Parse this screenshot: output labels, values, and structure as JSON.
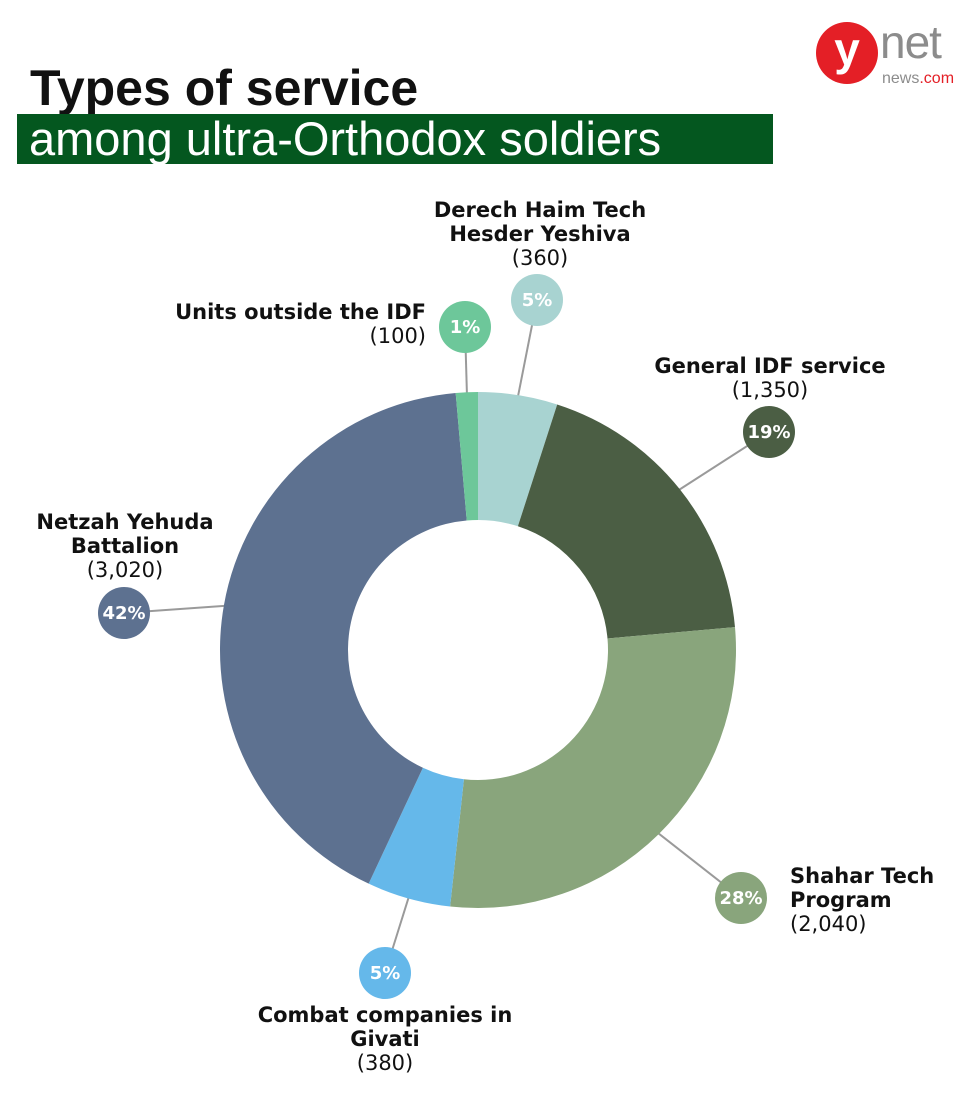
{
  "header": {
    "title": "Types of service",
    "subtitle": "among ultra-Orthodox soldiers"
  },
  "logo": {
    "mark": "y",
    "wordmark": "net",
    "site": "news",
    "domain": ".com"
  },
  "chart_data": {
    "type": "pie",
    "donut": true,
    "title": "Types of service",
    "subtitle": "among ultra-Orthodox soldiers",
    "legend": "none",
    "slices": [
      {
        "name": "Derech Haim Tech Hesder Yeshiva",
        "count_label": "(360)",
        "value": 360,
        "percent_label": "5%",
        "color": "#a8d3d1"
      },
      {
        "name": "General IDF service",
        "count_label": "(1,350)",
        "value": 1350,
        "percent_label": "19%",
        "color": "#4b5e44"
      },
      {
        "name": "Shahar Tech Program",
        "count_label": "(2,040)",
        "value": 2040,
        "percent_label": "28%",
        "color": "#89a57c"
      },
      {
        "name": "Combat companies in Givati",
        "count_label": "(380)",
        "value": 380,
        "percent_label": "5%",
        "color": "#65b8ea"
      },
      {
        "name": "Netzah Yehuda Battalion",
        "count_label": "(3,020)",
        "value": 3020,
        "percent_label": "42%",
        "color": "#5d7190"
      },
      {
        "name": "Units outside the IDF",
        "count_label": "(100)",
        "value": 100,
        "percent_label": "1%",
        "color": "#6dc79a"
      }
    ]
  }
}
